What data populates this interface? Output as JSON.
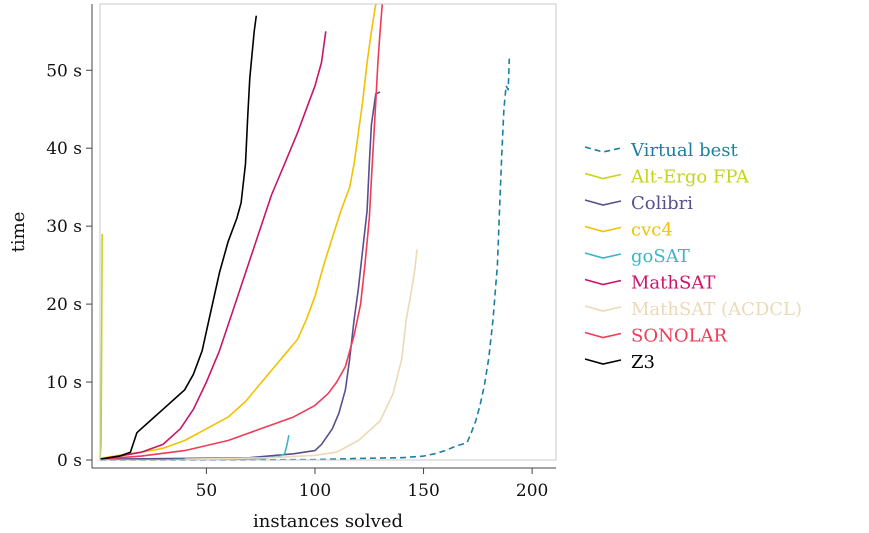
{
  "chart_data": {
    "type": "line",
    "xlabel": "instances solved",
    "ylabel": "time",
    "xlim": [
      1,
      211
    ],
    "ylim": [
      0,
      58.5
    ],
    "xticks": [
      {
        "value": 50,
        "label": "50"
      },
      {
        "value": 100,
        "label": "100"
      },
      {
        "value": 150,
        "label": "150"
      },
      {
        "value": 200,
        "label": "200"
      }
    ],
    "yticks": [
      {
        "value": 0,
        "label": "0 s"
      },
      {
        "value": 10,
        "label": "10 s"
      },
      {
        "value": 20,
        "label": "20 s"
      },
      {
        "value": 30,
        "label": "30 s"
      },
      {
        "value": 40,
        "label": "40 s"
      },
      {
        "value": 50,
        "label": "50 s"
      }
    ],
    "legend_position": "right",
    "grid": false,
    "series": [
      {
        "name": "Virtual best",
        "color": "#1a7fa3",
        "dash": true,
        "points": [
          [
            1,
            0
          ],
          [
            60,
            0
          ],
          [
            100,
            0.05
          ],
          [
            120,
            0.2
          ],
          [
            140,
            0.3
          ],
          [
            150,
            0.5
          ],
          [
            155,
            0.8
          ],
          [
            160,
            1.2
          ],
          [
            165,
            1.8
          ],
          [
            170,
            2.2
          ],
          [
            172,
            3.5
          ],
          [
            174,
            5
          ],
          [
            176,
            7
          ],
          [
            178,
            9.5
          ],
          [
            180,
            13
          ],
          [
            182,
            18
          ],
          [
            184,
            25
          ],
          [
            185,
            32
          ],
          [
            186,
            39
          ],
          [
            187,
            45
          ],
          [
            188,
            48
          ],
          [
            189,
            47.5
          ],
          [
            189.5,
            51.5
          ]
        ]
      },
      {
        "name": "Alt-Ergo FPA",
        "color": "#c5d31e",
        "dash": false,
        "points": [
          [
            1,
            0.3
          ],
          [
            1.5,
            2
          ],
          [
            2,
            29
          ]
        ]
      },
      {
        "name": "Colibri",
        "color": "#5a4e8e",
        "dash": false,
        "points": [
          [
            1,
            0.1
          ],
          [
            40,
            0.2
          ],
          [
            70,
            0.3
          ],
          [
            90,
            0.8
          ],
          [
            100,
            1.2
          ],
          [
            103,
            2
          ],
          [
            108,
            4
          ],
          [
            111,
            6
          ],
          [
            114,
            9
          ],
          [
            116,
            13
          ],
          [
            118,
            18
          ],
          [
            120,
            22
          ],
          [
            122,
            27
          ],
          [
            124,
            32
          ],
          [
            125,
            38
          ],
          [
            126,
            43
          ],
          [
            127,
            45
          ],
          [
            128,
            47
          ],
          [
            130,
            47.2
          ]
        ]
      },
      {
        "name": "cvc4",
        "color": "#f2c200",
        "dash": false,
        "points": [
          [
            1,
            0.2
          ],
          [
            10,
            0.6
          ],
          [
            20,
            1
          ],
          [
            30,
            1.5
          ],
          [
            40,
            2.5
          ],
          [
            50,
            4
          ],
          [
            60,
            5.5
          ],
          [
            68,
            7.5
          ],
          [
            74,
            9.5
          ],
          [
            80,
            11.5
          ],
          [
            86,
            13.5
          ],
          [
            92,
            15.5
          ],
          [
            96,
            18
          ],
          [
            100,
            21
          ],
          [
            104,
            25
          ],
          [
            108,
            28.5
          ],
          [
            112,
            32
          ],
          [
            116,
            35
          ],
          [
            118,
            38
          ],
          [
            120,
            42
          ],
          [
            122,
            46
          ],
          [
            124,
            51
          ],
          [
            126,
            55
          ],
          [
            128,
            58.5
          ]
        ]
      },
      {
        "name": "goSAT",
        "color": "#3db4c8",
        "dash": false,
        "points": [
          [
            35,
            0.05
          ],
          [
            60,
            0.1
          ],
          [
            75,
            0.2
          ],
          [
            83,
            0.4
          ],
          [
            86,
            0.8
          ],
          [
            87,
            1.8
          ],
          [
            88,
            3.2
          ]
        ]
      },
      {
        "name": "MathSAT",
        "color": "#c8156b",
        "dash": false,
        "points": [
          [
            1,
            0.1
          ],
          [
            10,
            0.5
          ],
          [
            20,
            1
          ],
          [
            30,
            2
          ],
          [
            38,
            4
          ],
          [
            44,
            6.5
          ],
          [
            50,
            10
          ],
          [
            56,
            14
          ],
          [
            62,
            19
          ],
          [
            68,
            24
          ],
          [
            74,
            29
          ],
          [
            80,
            34
          ],
          [
            86,
            38
          ],
          [
            92,
            42
          ],
          [
            96,
            45
          ],
          [
            100,
            48
          ],
          [
            103,
            51
          ],
          [
            105,
            55
          ]
        ]
      },
      {
        "name": "MathSAT (ACDCL)",
        "color": "#ecd9b6",
        "dash": false,
        "points": [
          [
            40,
            0.1
          ],
          [
            80,
            0.3
          ],
          [
            100,
            0.6
          ],
          [
            110,
            1
          ],
          [
            120,
            2.5
          ],
          [
            130,
            5
          ],
          [
            136,
            8.5
          ],
          [
            140,
            13
          ],
          [
            142,
            18
          ],
          [
            144,
            21
          ],
          [
            146,
            24.5
          ],
          [
            147,
            27
          ]
        ]
      },
      {
        "name": "SONOLAR",
        "color": "#ee3b57",
        "dash": false,
        "points": [
          [
            1,
            0.1
          ],
          [
            20,
            0.5
          ],
          [
            40,
            1.2
          ],
          [
            60,
            2.5
          ],
          [
            75,
            4
          ],
          [
            90,
            5.5
          ],
          [
            100,
            7
          ],
          [
            106,
            8.5
          ],
          [
            110,
            10
          ],
          [
            114,
            12
          ],
          [
            118,
            16
          ],
          [
            121,
            20
          ],
          [
            123,
            25
          ],
          [
            125,
            31
          ],
          [
            126,
            36
          ],
          [
            127,
            41
          ],
          [
            128,
            46
          ],
          [
            129,
            51
          ],
          [
            130,
            55
          ],
          [
            131,
            58.5
          ]
        ]
      },
      {
        "name": "Z3",
        "color": "#000000",
        "dash": false,
        "points": [
          [
            1,
            0.1
          ],
          [
            10,
            0.5
          ],
          [
            15,
            1
          ],
          [
            18,
            3.5
          ],
          [
            24,
            5
          ],
          [
            30,
            6.5
          ],
          [
            36,
            8
          ],
          [
            40,
            9
          ],
          [
            44,
            11
          ],
          [
            48,
            14
          ],
          [
            52,
            19
          ],
          [
            56,
            24
          ],
          [
            60,
            28
          ],
          [
            64,
            31
          ],
          [
            66,
            33
          ],
          [
            68,
            38
          ],
          [
            69,
            44
          ],
          [
            70,
            49
          ],
          [
            71,
            52
          ],
          [
            72,
            55
          ],
          [
            73,
            57
          ]
        ]
      }
    ]
  }
}
